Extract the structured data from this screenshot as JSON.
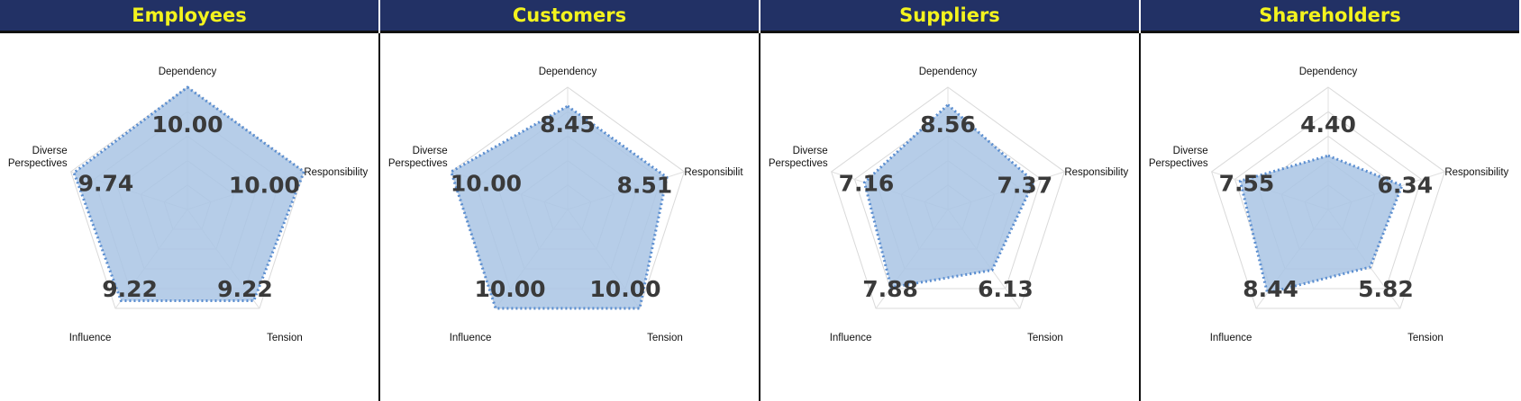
{
  "chart_data": [
    {
      "type": "radar",
      "title": "Employees",
      "axes": [
        "Dependency",
        "Responsibility",
        "Tension",
        "Influence",
        "Diverse Perspectives"
      ],
      "values": [
        10.0,
        10.0,
        9.22,
        9.22,
        9.74
      ],
      "value_labels": [
        "10.00",
        "10.00",
        "9.22",
        "9.22",
        "9.74"
      ],
      "rmax": 10
    },
    {
      "type": "radar",
      "title": "Customers",
      "axes": [
        "Dependency",
        "Responsibilit",
        "Tension",
        "Influence",
        "Diverse Perspectives"
      ],
      "values": [
        8.45,
        8.51,
        10.0,
        10.0,
        10.0
      ],
      "value_labels": [
        "8.45",
        "8.51",
        "10.00",
        "10.00",
        "10.00"
      ],
      "rmax": 10
    },
    {
      "type": "radar",
      "title": "Suppliers",
      "axes": [
        "Dependency",
        "Responsibility",
        "Tension",
        "Influence",
        "Diverse Perspectives"
      ],
      "values": [
        8.56,
        7.37,
        6.13,
        7.88,
        7.16
      ],
      "value_labels": [
        "8.56",
        "7.37",
        "6.13",
        "7.88",
        "7.16"
      ],
      "rmax": 10
    },
    {
      "type": "radar",
      "title": "Shareholders",
      "axes": [
        "Dependency",
        "Responsibility",
        "Tension",
        "Influence",
        "Diverse Perspectives"
      ],
      "values": [
        4.4,
        6.34,
        5.82,
        8.44,
        7.55
      ],
      "value_labels": [
        "4.40",
        "6.34",
        "5.82",
        "8.44",
        "7.55"
      ],
      "rmax": 10
    }
  ],
  "colors": {
    "header_bg": "#223165",
    "header_text": "#f3f31e",
    "fill": "#a9c4e4",
    "outline": "#5b8ed0",
    "grid": "#d9d9d9"
  }
}
